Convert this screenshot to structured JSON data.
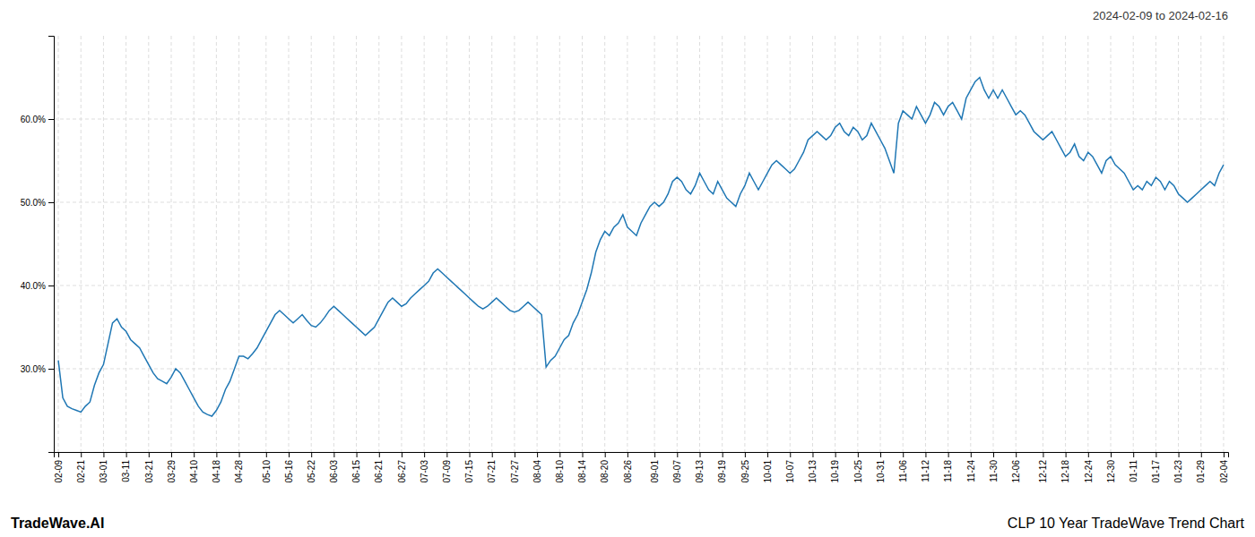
{
  "chart_data": {
    "type": "line",
    "title": "2024-02-09 to 2024-02-16",
    "annotations": [
      "TradeWave.AI",
      "CLP 10 Year TradeWave Trend Chart"
    ],
    "color": "#1f77b4",
    "grid": true,
    "ylim": [
      20,
      70
    ],
    "yticks": [
      {
        "value": 30,
        "label": "30.0%"
      },
      {
        "value": 40,
        "label": "40.0%"
      },
      {
        "value": 50,
        "label": "50.0%"
      },
      {
        "value": 60,
        "label": "60.0%"
      }
    ],
    "categories": [
      "02-09",
      null,
      null,
      null,
      null,
      "02-21",
      null,
      null,
      null,
      null,
      "03-01",
      null,
      null,
      null,
      null,
      "03-11",
      null,
      null,
      null,
      null,
      "03-21",
      null,
      null,
      null,
      null,
      "03-29",
      null,
      null,
      null,
      null,
      "04-10",
      null,
      null,
      null,
      null,
      "04-18",
      null,
      null,
      null,
      null,
      "04-28",
      null,
      null,
      null,
      null,
      null,
      "05-10",
      null,
      null,
      null,
      null,
      "05-16",
      null,
      null,
      null,
      null,
      "05-22",
      null,
      null,
      null,
      null,
      "06-03",
      null,
      null,
      null,
      null,
      "06-15",
      null,
      null,
      null,
      null,
      "06-21",
      null,
      null,
      null,
      null,
      "06-27",
      null,
      null,
      null,
      null,
      "07-03",
      null,
      null,
      null,
      null,
      "07-09",
      null,
      null,
      null,
      null,
      "07-15",
      null,
      null,
      null,
      null,
      "07-21",
      null,
      null,
      null,
      null,
      "07-27",
      null,
      null,
      null,
      null,
      "08-04",
      null,
      null,
      null,
      null,
      "08-10",
      null,
      null,
      null,
      null,
      "08-14",
      null,
      null,
      null,
      null,
      "08-20",
      null,
      null,
      null,
      null,
      "08-26",
      null,
      null,
      null,
      null,
      null,
      "09-01",
      null,
      null,
      null,
      null,
      "09-07",
      null,
      null,
      null,
      null,
      "09-13",
      null,
      null,
      null,
      null,
      "09-19",
      null,
      null,
      null,
      null,
      "09-25",
      null,
      null,
      null,
      null,
      "10-01",
      null,
      null,
      null,
      null,
      "10-07",
      null,
      null,
      null,
      null,
      "10-13",
      null,
      null,
      null,
      null,
      "10-19",
      null,
      null,
      null,
      null,
      "10-25",
      null,
      null,
      null,
      null,
      "10-31",
      null,
      null,
      null,
      null,
      "11-06",
      null,
      null,
      null,
      null,
      "11-12",
      null,
      null,
      null,
      null,
      "11-18",
      null,
      null,
      null,
      null,
      "11-24",
      null,
      null,
      null,
      null,
      "11-30",
      null,
      null,
      null,
      null,
      "12-06",
      null,
      null,
      null,
      null,
      null,
      "12-12",
      null,
      null,
      null,
      null,
      "12-18",
      null,
      null,
      null,
      null,
      "12-24",
      null,
      null,
      null,
      null,
      "12-30",
      null,
      null,
      null,
      null,
      "01-11",
      null,
      null,
      null,
      null,
      "01-17",
      null,
      null,
      null,
      null,
      "01-23",
      null,
      null,
      null,
      null,
      "01-29",
      null,
      null,
      null,
      null,
      "02-04"
    ],
    "values": [
      31.0,
      26.5,
      25.5,
      25.2,
      25.0,
      24.8,
      25.5,
      26.0,
      28.0,
      29.5,
      30.5,
      33.0,
      35.5,
      36.0,
      35.0,
      34.5,
      33.5,
      33.0,
      32.5,
      31.5,
      30.5,
      29.5,
      28.8,
      28.5,
      28.2,
      29.0,
      30.0,
      29.5,
      28.5,
      27.5,
      26.5,
      25.5,
      24.8,
      24.5,
      24.3,
      25.0,
      26.0,
      27.5,
      28.5,
      30.0,
      31.5,
      31.5,
      31.2,
      31.8,
      32.5,
      33.5,
      34.5,
      35.5,
      36.5,
      37.0,
      36.5,
      36.0,
      35.5,
      36.0,
      36.5,
      35.8,
      35.2,
      35.0,
      35.5,
      36.2,
      37.0,
      37.5,
      37.0,
      36.5,
      36.0,
      35.5,
      35.0,
      34.5,
      34.0,
      34.5,
      35.0,
      36.0,
      37.0,
      38.0,
      38.5,
      38.0,
      37.5,
      37.8,
      38.5,
      39.0,
      39.5,
      40.0,
      40.5,
      41.5,
      42.0,
      41.5,
      41.0,
      40.5,
      40.0,
      39.5,
      39.0,
      38.5,
      38.0,
      37.5,
      37.2,
      37.5,
      38.0,
      38.5,
      38.0,
      37.5,
      37.0,
      36.8,
      37.0,
      37.5,
      38.0,
      37.5,
      37.0,
      36.5,
      30.2,
      31.0,
      31.5,
      32.5,
      33.5,
      34.0,
      35.5,
      36.5,
      38.0,
      39.5,
      41.5,
      44.0,
      45.5,
      46.5,
      46.0,
      47.0,
      47.5,
      48.5,
      47.0,
      46.5,
      46.0,
      47.5,
      48.5,
      49.5,
      50.0,
      49.5,
      50.0,
      51.0,
      52.5,
      53.0,
      52.5,
      51.5,
      51.0,
      52.0,
      53.5,
      52.5,
      51.5,
      51.0,
      52.5,
      51.5,
      50.5,
      50.0,
      49.5,
      51.0,
      52.0,
      53.5,
      52.5,
      51.5,
      52.5,
      53.5,
      54.5,
      55.0,
      54.5,
      54.0,
      53.5,
      54.0,
      55.0,
      56.0,
      57.5,
      58.0,
      58.5,
      58.0,
      57.5,
      58.0,
      59.0,
      59.5,
      58.5,
      58.0,
      59.0,
      58.5,
      57.5,
      58.0,
      59.5,
      58.5,
      57.5,
      56.5,
      55.0,
      53.5,
      59.5,
      61.0,
      60.5,
      60.0,
      61.5,
      60.5,
      59.5,
      60.5,
      62.0,
      61.5,
      60.5,
      61.5,
      62.0,
      61.0,
      60.0,
      62.5,
      63.5,
      64.5,
      65.0,
      63.5,
      62.5,
      63.5,
      62.5,
      63.5,
      62.5,
      61.5,
      60.5,
      61.0,
      60.5,
      59.5,
      58.5,
      58.0,
      57.5,
      58.0,
      58.5,
      57.5,
      56.5,
      55.5,
      56.0,
      57.0,
      55.5,
      55.0,
      56.0,
      55.5,
      54.5,
      53.5,
      55.0,
      55.5,
      54.5,
      54.0,
      53.5,
      52.5,
      51.5,
      52.0,
      51.5,
      52.5,
      52.0,
      53.0,
      52.5,
      51.5,
      52.5,
      52.0,
      51.0,
      50.5,
      50.0,
      50.5,
      51.0,
      51.5,
      52.0,
      52.5,
      52.0,
      53.5,
      54.5
    ]
  }
}
